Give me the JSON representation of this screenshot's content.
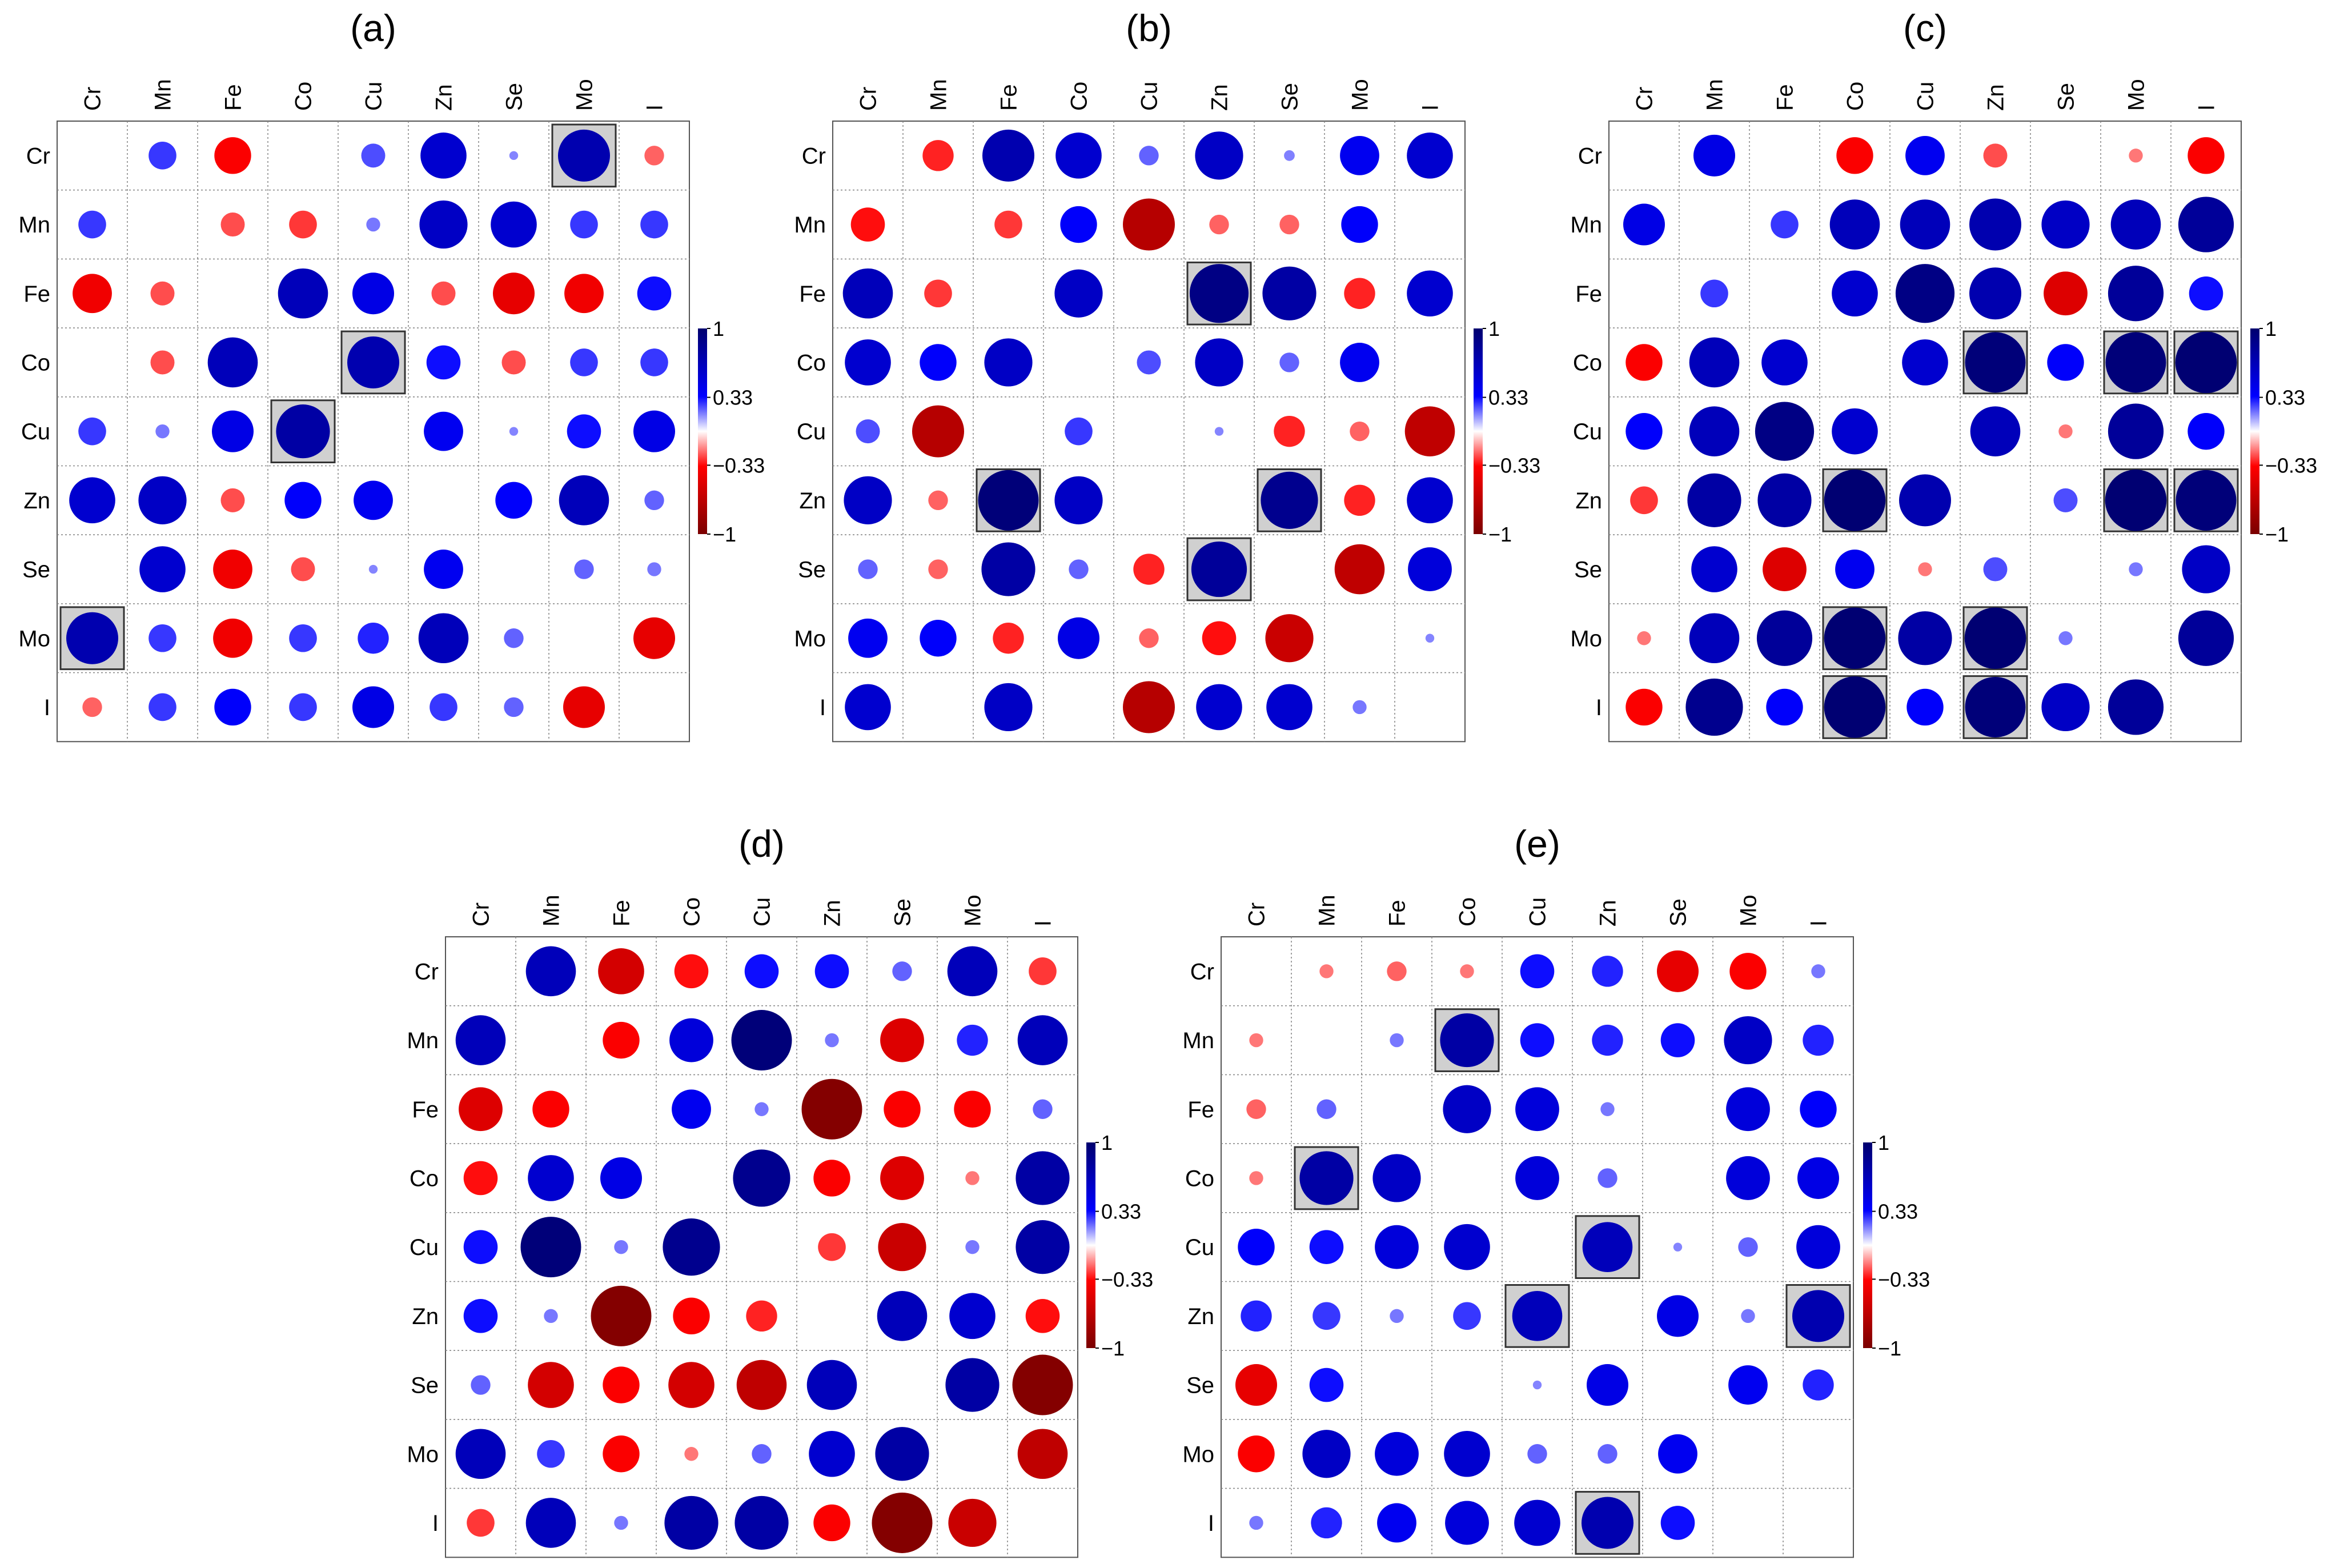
{
  "chart_data": [
    {
      "type": "heatmap",
      "title": "(a)",
      "labels": [
        "Cr",
        "Mn",
        "Fe",
        "Co",
        "Cu",
        "Zn",
        "Se",
        "Mo",
        "I"
      ],
      "matrix": [
        [
          null,
          0.2,
          -0.35,
          0.0,
          0.15,
          0.55,
          0.02,
          0.7,
          -0.1
        ],
        [
          0.2,
          null,
          -0.15,
          -0.2,
          0.05,
          0.6,
          0.55,
          0.2,
          0.2
        ],
        [
          -0.4,
          -0.15,
          null,
          0.65,
          0.45,
          -0.15,
          -0.45,
          -0.4,
          0.3
        ],
        [
          0.0,
          -0.15,
          0.65,
          null,
          0.7,
          0.3,
          -0.15,
          0.2,
          0.2
        ],
        [
          0.2,
          0.05,
          0.45,
          0.75,
          null,
          0.4,
          0.02,
          0.3,
          0.45
        ],
        [
          0.55,
          0.6,
          -0.15,
          0.35,
          0.4,
          null,
          0.35,
          0.65,
          0.1
        ],
        [
          0.0,
          0.55,
          -0.4,
          -0.15,
          0.02,
          0.4,
          null,
          0.1,
          0.05
        ],
        [
          0.7,
          0.2,
          -0.4,
          0.2,
          0.25,
          0.65,
          0.1,
          null,
          -0.45
        ],
        [
          -0.1,
          0.2,
          0.35,
          0.2,
          0.45,
          0.2,
          0.1,
          -0.45,
          null
        ]
      ],
      "highlighted": [
        [
          0,
          7
        ],
        [
          3,
          4
        ],
        [
          4,
          3
        ],
        [
          7,
          0
        ]
      ]
    },
    {
      "type": "heatmap",
      "title": "(b)",
      "labels": [
        "Cr",
        "Mn",
        "Fe",
        "Co",
        "Cu",
        "Zn",
        "Se",
        "Mo",
        "I"
      ],
      "matrix": [
        [
          null,
          -0.25,
          0.7,
          0.55,
          0.1,
          0.6,
          0.03,
          0.4,
          0.55
        ],
        [
          -0.3,
          null,
          -0.2,
          0.35,
          -0.7,
          -0.1,
          -0.1,
          0.35,
          0.0
        ],
        [
          0.65,
          -0.2,
          null,
          0.6,
          0.0,
          0.9,
          0.75,
          -0.25,
          0.55
        ],
        [
          0.55,
          0.35,
          0.6,
          null,
          0.15,
          0.6,
          0.1,
          0.4,
          0.0
        ],
        [
          0.15,
          -0.7,
          0.0,
          0.2,
          null,
          0.02,
          -0.25,
          -0.1,
          -0.65
        ],
        [
          0.6,
          -0.1,
          0.95,
          0.6,
          0.0,
          null,
          0.85,
          -0.25,
          0.55
        ],
        [
          0.1,
          -0.1,
          0.75,
          0.1,
          -0.25,
          0.8,
          null,
          -0.65,
          0.5
        ],
        [
          0.4,
          0.35,
          -0.25,
          0.45,
          -0.1,
          -0.3,
          -0.6,
          null,
          0.02
        ],
        [
          0.55,
          0.0,
          0.6,
          0.0,
          -0.7,
          0.55,
          0.55,
          0.05,
          null
        ]
      ],
      "highlighted": [
        [
          2,
          5
        ],
        [
          5,
          2
        ],
        [
          5,
          6
        ],
        [
          6,
          5
        ]
      ]
    },
    {
      "type": "heatmap",
      "title": "(c)",
      "labels": [
        "Cr",
        "Mn",
        "Fe",
        "Co",
        "Cu",
        "Zn",
        "Se",
        "Mo",
        "I"
      ],
      "matrix": [
        [
          null,
          0.45,
          0.0,
          -0.35,
          0.4,
          -0.15,
          0.0,
          -0.05,
          -0.35
        ],
        [
          0.45,
          null,
          0.2,
          0.65,
          0.65,
          0.7,
          0.6,
          0.65,
          0.8
        ],
        [
          0.0,
          0.2,
          null,
          0.55,
          0.9,
          0.7,
          -0.5,
          0.8,
          0.3
        ],
        [
          -0.35,
          0.65,
          0.55,
          null,
          0.55,
          0.95,
          0.35,
          0.95,
          0.98
        ],
        [
          0.35,
          0.65,
          0.9,
          0.55,
          null,
          0.65,
          -0.05,
          0.8,
          0.35
        ],
        [
          -0.2,
          0.75,
          0.75,
          0.98,
          0.7,
          null,
          0.15,
          0.98,
          0.95
        ],
        [
          0.0,
          0.55,
          -0.5,
          0.4,
          -0.05,
          0.15,
          null,
          0.05,
          0.6
        ],
        [
          -0.05,
          0.65,
          0.8,
          0.98,
          0.75,
          0.98,
          0.05,
          null,
          0.8
        ],
        [
          -0.35,
          0.85,
          0.35,
          0.98,
          0.35,
          0.95,
          0.6,
          0.8,
          null
        ]
      ],
      "highlighted": [
        [
          3,
          5
        ],
        [
          3,
          7
        ],
        [
          3,
          8
        ],
        [
          5,
          3
        ],
        [
          5,
          7
        ],
        [
          5,
          8
        ],
        [
          7,
          3
        ],
        [
          7,
          5
        ],
        [
          8,
          3
        ],
        [
          8,
          5
        ]
      ]
    },
    {
      "type": "heatmap",
      "title": "(d)",
      "labels": [
        "Cr",
        "Mn",
        "Fe",
        "Co",
        "Cu",
        "Zn",
        "Se",
        "Mo",
        "I"
      ],
      "matrix": [
        [
          null,
          0.65,
          -0.55,
          -0.3,
          0.3,
          0.3,
          0.1,
          0.65,
          -0.2
        ],
        [
          0.65,
          null,
          -0.35,
          0.5,
          0.95,
          0.05,
          -0.5,
          0.25,
          0.65
        ],
        [
          -0.5,
          -0.35,
          null,
          0.4,
          0.05,
          -0.95,
          -0.35,
          -0.35,
          0.1
        ],
        [
          -0.3,
          0.55,
          0.45,
          null,
          0.85,
          -0.35,
          -0.5,
          -0.05,
          0.75
        ],
        [
          0.3,
          0.95,
          0.05,
          0.85,
          null,
          -0.2,
          -0.6,
          0.05,
          0.75
        ],
        [
          0.3,
          0.05,
          -0.95,
          -0.35,
          -0.25,
          null,
          0.65,
          0.55,
          -0.3
        ],
        [
          0.1,
          -0.55,
          -0.35,
          -0.55,
          -0.65,
          0.65,
          null,
          0.75,
          -0.95
        ],
        [
          0.65,
          0.2,
          -0.35,
          -0.05,
          0.1,
          0.55,
          0.75,
          null,
          -0.65
        ],
        [
          -0.2,
          0.65,
          0.05,
          0.75,
          0.75,
          -0.35,
          -0.95,
          -0.6,
          null
        ]
      ],
      "highlighted": []
    },
    {
      "type": "heatmap",
      "title": "(e)",
      "labels": [
        "Cr",
        "Mn",
        "Fe",
        "Co",
        "Cu",
        "Zn",
        "Se",
        "Mo",
        "I"
      ],
      "matrix": [
        [
          null,
          -0.05,
          -0.1,
          -0.05,
          0.3,
          0.25,
          -0.45,
          -0.35,
          0.05
        ],
        [
          -0.05,
          null,
          0.05,
          0.75,
          0.3,
          0.25,
          0.3,
          0.6,
          0.25
        ],
        [
          -0.1,
          0.1,
          null,
          0.6,
          0.5,
          0.05,
          0.0,
          0.5,
          0.35
        ],
        [
          -0.05,
          0.75,
          0.6,
          null,
          0.5,
          0.1,
          0.0,
          0.5,
          0.45
        ],
        [
          0.35,
          0.3,
          0.5,
          0.55,
          null,
          0.65,
          0.02,
          0.1,
          0.5
        ],
        [
          0.25,
          0.2,
          0.05,
          0.2,
          0.65,
          null,
          0.45,
          0.05,
          0.7
        ],
        [
          -0.45,
          0.3,
          0.0,
          0.0,
          0.02,
          0.45,
          null,
          0.4,
          0.25
        ],
        [
          -0.35,
          0.6,
          0.5,
          0.55,
          0.1,
          0.1,
          0.4,
          null,
          0.0
        ],
        [
          0.05,
          0.25,
          0.4,
          0.5,
          0.55,
          0.7,
          0.3,
          0.0,
          null
        ]
      ],
      "highlighted": [
        [
          1,
          3
        ],
        [
          3,
          1
        ],
        [
          4,
          5
        ],
        [
          5,
          4
        ],
        [
          5,
          8
        ],
        [
          8,
          5
        ]
      ]
    }
  ],
  "colorbar": {
    "tick_labels": [
      "1",
      "0.33",
      "−0.33",
      "−1"
    ],
    "colors": [
      "#00006E",
      "#0000FF",
      "#FFFFFF",
      "#FF0000",
      "#7A0000"
    ]
  }
}
